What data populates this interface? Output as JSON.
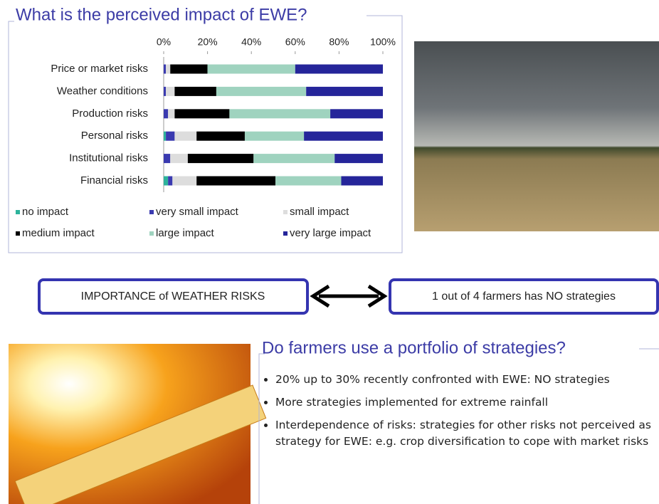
{
  "chart_data": {
    "type": "stacked-bar-horizontal",
    "title": "What is the perceived impact of EWE?",
    "categories": [
      "Price or market risks",
      "Weather conditions",
      "Production risks",
      "Personal risks",
      "Institutional risks",
      "Financial risks"
    ],
    "series": [
      {
        "name": "no impact",
        "color": "#2db39b",
        "values": [
          0,
          0,
          0,
          1,
          0,
          2
        ]
      },
      {
        "name": "very small impact",
        "color": "#3a3ab0",
        "values": [
          1,
          1,
          2,
          4,
          3,
          2
        ]
      },
      {
        "name": "small impact",
        "color": "#dddddd",
        "values": [
          2,
          4,
          3,
          10,
          8,
          11
        ]
      },
      {
        "name": "medium impact",
        "color": "#000000",
        "values": [
          17,
          19,
          25,
          22,
          30,
          36
        ]
      },
      {
        "name": "large impact",
        "color": "#9fd3bf",
        "values": [
          40,
          41,
          46,
          27,
          37,
          30
        ]
      },
      {
        "name": "very large impact",
        "color": "#25259a",
        "values": [
          40,
          35,
          24,
          36,
          22,
          19
        ]
      }
    ],
    "xlim": [
      0,
      100
    ],
    "xticks": [
      {
        "value": 0,
        "label": "0%"
      },
      {
        "value": 20,
        "label": "20%"
      },
      {
        "value": 40,
        "label": "40%"
      },
      {
        "value": 60,
        "label": "60%"
      },
      {
        "value": 80,
        "label": "80%"
      },
      {
        "value": 100,
        "label": "100%"
      }
    ]
  },
  "link_boxes": [
    "IMPORTANCE of WEATHER RISKS",
    "1 out of 4 farmers has NO strategies"
  ],
  "section": {
    "title": "Do farmers use a portfolio of strategies?",
    "bullets": [
      "20% up to 30% recently confronted with EWE:     NO strategies",
      "More strategies implemented for extreme rainfall",
      "Interdependence of risks: strategies for other risks not perceived as strategy for EWE: e.g. crop diversification to cope with market risks"
    ]
  }
}
